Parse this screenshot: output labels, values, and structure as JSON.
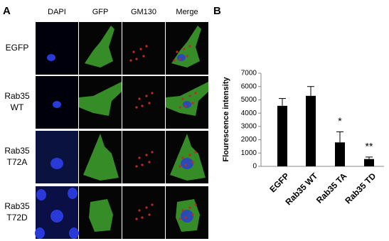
{
  "panel_a": {
    "label": "A",
    "columns": [
      "DAPI",
      "GFP",
      "GM130",
      "Merge"
    ],
    "rows": [
      [
        "EGFP"
      ],
      [
        "Rab35",
        "WT"
      ],
      [
        "Rab35",
        "T72A"
      ],
      [
        "Rab35",
        "T72D"
      ]
    ]
  },
  "chart_data": {
    "type": "bar",
    "panel_label": "B",
    "y_label": "Flourescence intensity",
    "categories": [
      "EGFP",
      "Rab35 WT",
      "Rab35 TA",
      "Rab35 TD"
    ],
    "values": [
      4550,
      5300,
      1800,
      550
    ],
    "errors": [
      550,
      700,
      800,
      150
    ],
    "value_annotations": [
      null,
      null,
      "*",
      "**"
    ],
    "color": "#000000",
    "ylim": [
      0,
      7000
    ],
    "yticks": [
      0,
      1000,
      2000,
      3000,
      4000,
      5000,
      6000,
      7000
    ]
  }
}
